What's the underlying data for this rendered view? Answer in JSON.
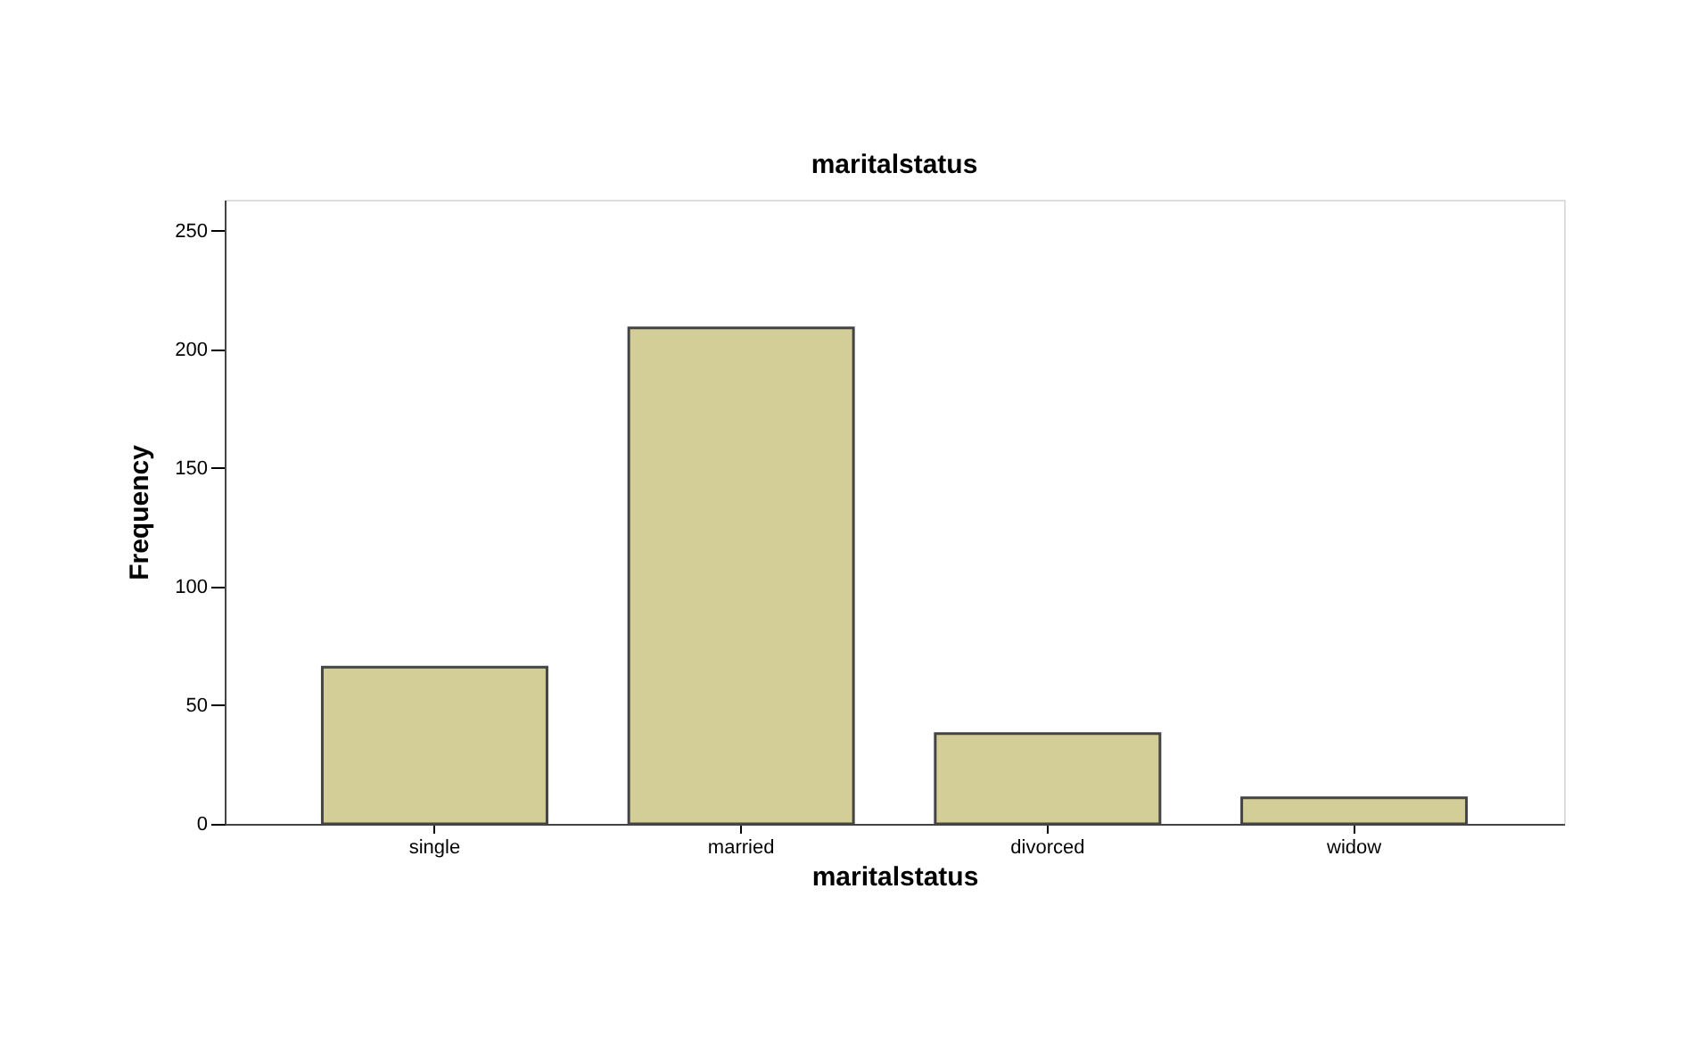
{
  "chart_data": {
    "type": "bar",
    "title": "maritalstatus",
    "xlabel": "maritalstatus",
    "ylabel": "Frequency",
    "categories": [
      "single",
      "married",
      "divorced",
      "widow"
    ],
    "values": [
      66,
      209,
      38,
      11
    ],
    "color": "#d3ce97",
    "ylim": [
      0,
      263
    ],
    "yticks": [
      0,
      50,
      100,
      150,
      200,
      250
    ],
    "grid": false
  }
}
